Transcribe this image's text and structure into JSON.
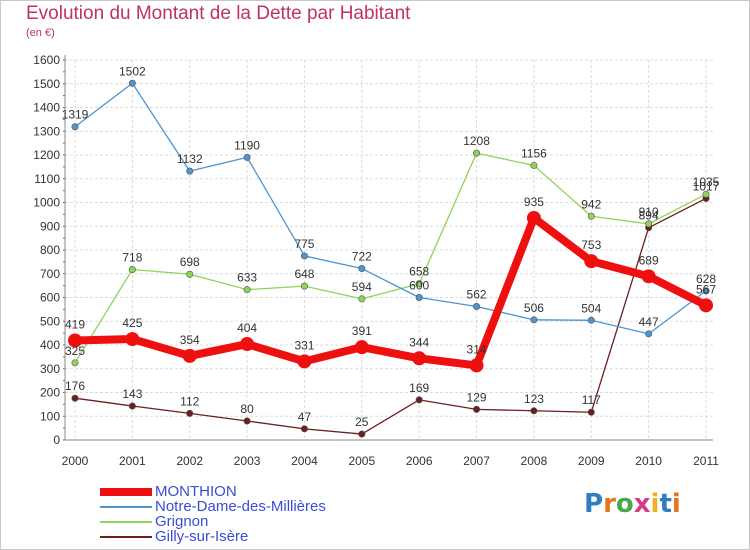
{
  "title": "Evolution du Montant de la Dette par Habitant",
  "subtitle": "(en €)",
  "logo": {
    "text": "Proxiti",
    "letter_colors": [
      "#2f7fc1",
      "#e0781f",
      "#4aa84a",
      "#d83a8a",
      "#f0b020",
      "#2f7fc1",
      "#e0781f"
    ]
  },
  "chart_data": {
    "type": "line",
    "x": [
      "2000",
      "2001",
      "2002",
      "2003",
      "2004",
      "2005",
      "2006",
      "2007",
      "2008",
      "2009",
      "2010",
      "2011"
    ],
    "ylim": [
      0,
      1600
    ],
    "yticks": [
      "0",
      "100",
      "200",
      "300",
      "400",
      "500",
      "600",
      "700",
      "800",
      "900",
      "1000",
      "1100",
      "1200",
      "1300",
      "1400",
      "1500",
      "1600"
    ],
    "grid": true,
    "legend_position": "bottom-left",
    "series": [
      {
        "name": "Gilly-sur-Isère",
        "color": "#6b1f1f",
        "values": [
          176,
          143,
          112,
          80,
          47,
          25,
          169,
          129,
          123,
          117,
          894,
          1017
        ],
        "labels": [
          "176",
          "143",
          "112",
          "80",
          "47",
          "25",
          "169",
          "129",
          "123",
          "117",
          "894",
          "1017"
        ]
      },
      {
        "name": "Grignon",
        "color": "#8fd45a",
        "values": [
          325,
          718,
          698,
          633,
          648,
          594,
          658,
          1208,
          1156,
          942,
          910,
          1035
        ],
        "labels": [
          "325",
          "718",
          "698",
          "633",
          "648",
          "594",
          "658",
          "1208",
          "1156",
          "942",
          "910",
          "1035"
        ]
      },
      {
        "name": "Notre-Dame-des-Millières",
        "color": "#4d94d1",
        "values": [
          1319,
          1502,
          1132,
          1190,
          775,
          722,
          600,
          562,
          506,
          504,
          447,
          628
        ],
        "labels": [
          "1319",
          "1502",
          "1132",
          "1190",
          "775",
          "722",
          "600",
          "562",
          "506",
          "504",
          "447",
          "628"
        ]
      },
      {
        "name": "MONTHION",
        "color": "#ee0f0f",
        "values": [
          419,
          425,
          354,
          404,
          331,
          391,
          344,
          314,
          935,
          753,
          689,
          567
        ],
        "labels": [
          "419",
          "425",
          "354",
          "404",
          "331",
          "391",
          "344",
          "314",
          "935",
          "753",
          "689",
          "567"
        ]
      }
    ],
    "legend_order": [
      "MONTHION",
      "Notre-Dame-des-Millières",
      "Grignon",
      "Gilly-sur-Isère"
    ]
  }
}
